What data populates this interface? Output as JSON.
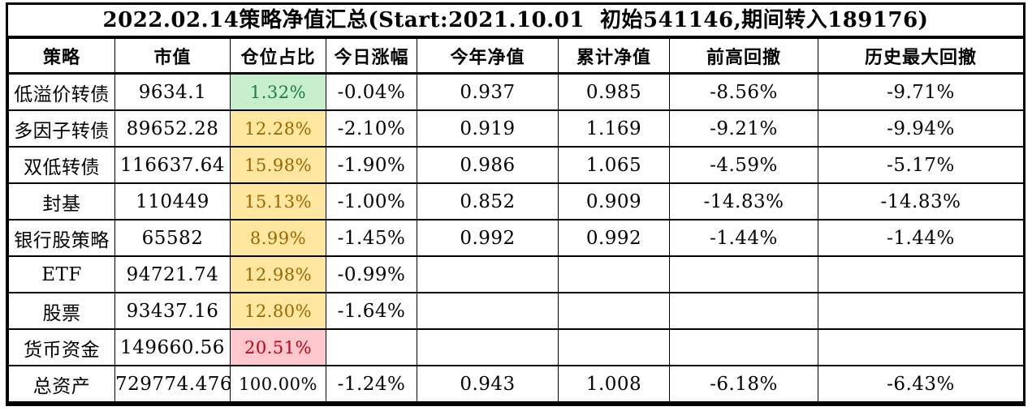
{
  "title": "2022.02.14策略净值汇总(Start:2021.10.01  初始541146,期间转入189176)",
  "palette": {
    "border": "#000000",
    "green_bg": "#c7efce",
    "green_text": "#1e7b3c",
    "yellow_bg": "#ffe79f",
    "yellow_text": "#9c6500",
    "red_bg": "#ffc7ce",
    "red_text": "#bd0013"
  },
  "table": {
    "headers": [
      "策略",
      "市值",
      "仓位占比",
      "今日涨幅",
      "今年净值",
      "累计净值",
      "前高回撤",
      "历史最大回撤"
    ],
    "column_keys": [
      "strategy",
      "market-value",
      "position-pct",
      "today-change",
      "ytd-nav",
      "cumulative-nav",
      "drawdown-from-high",
      "max-historical-drawdown"
    ],
    "rows": [
      {
        "highlight": "green",
        "cells": [
          "低溢价转债",
          "9634.1",
          "1.32%",
          "-0.04%",
          "0.937",
          "0.985",
          "-8.56%",
          "-9.71%"
        ]
      },
      {
        "highlight": "yellow",
        "cells": [
          "多因子转债",
          "89652.28",
          "12.28%",
          "-2.10%",
          "0.919",
          "1.169",
          "-9.21%",
          "-9.94%"
        ]
      },
      {
        "highlight": "yellow",
        "cells": [
          "双低转债",
          "116637.64",
          "15.98%",
          "-1.90%",
          "0.986",
          "1.065",
          "-4.59%",
          "-5.17%"
        ]
      },
      {
        "highlight": "yellow",
        "cells": [
          "封基",
          "110449",
          "15.13%",
          "-1.00%",
          "0.852",
          "0.909",
          "-14.83%",
          "-14.83%"
        ]
      },
      {
        "highlight": "yellow",
        "cells": [
          "银行股策略",
          "65582",
          "8.99%",
          "-1.45%",
          "0.992",
          "0.992",
          "-1.44%",
          "-1.44%"
        ]
      },
      {
        "highlight": "yellow",
        "cells": [
          "ETF",
          "94721.74",
          "12.98%",
          "-0.99%",
          "",
          "",
          "",
          ""
        ]
      },
      {
        "highlight": "yellow",
        "cells": [
          "股票",
          "93437.16",
          "12.80%",
          "-1.64%",
          "",
          "",
          "",
          ""
        ]
      },
      {
        "highlight": "red",
        "cells": [
          "货币资金",
          "149660.56",
          "20.51%",
          "",
          "",
          "",
          "",
          ""
        ]
      },
      {
        "highlight": "none",
        "cells": [
          "总资产",
          "729774.476",
          "100.00%",
          "-1.24%",
          "0.943",
          "1.008",
          "-6.18%",
          "-6.43%"
        ]
      }
    ]
  }
}
